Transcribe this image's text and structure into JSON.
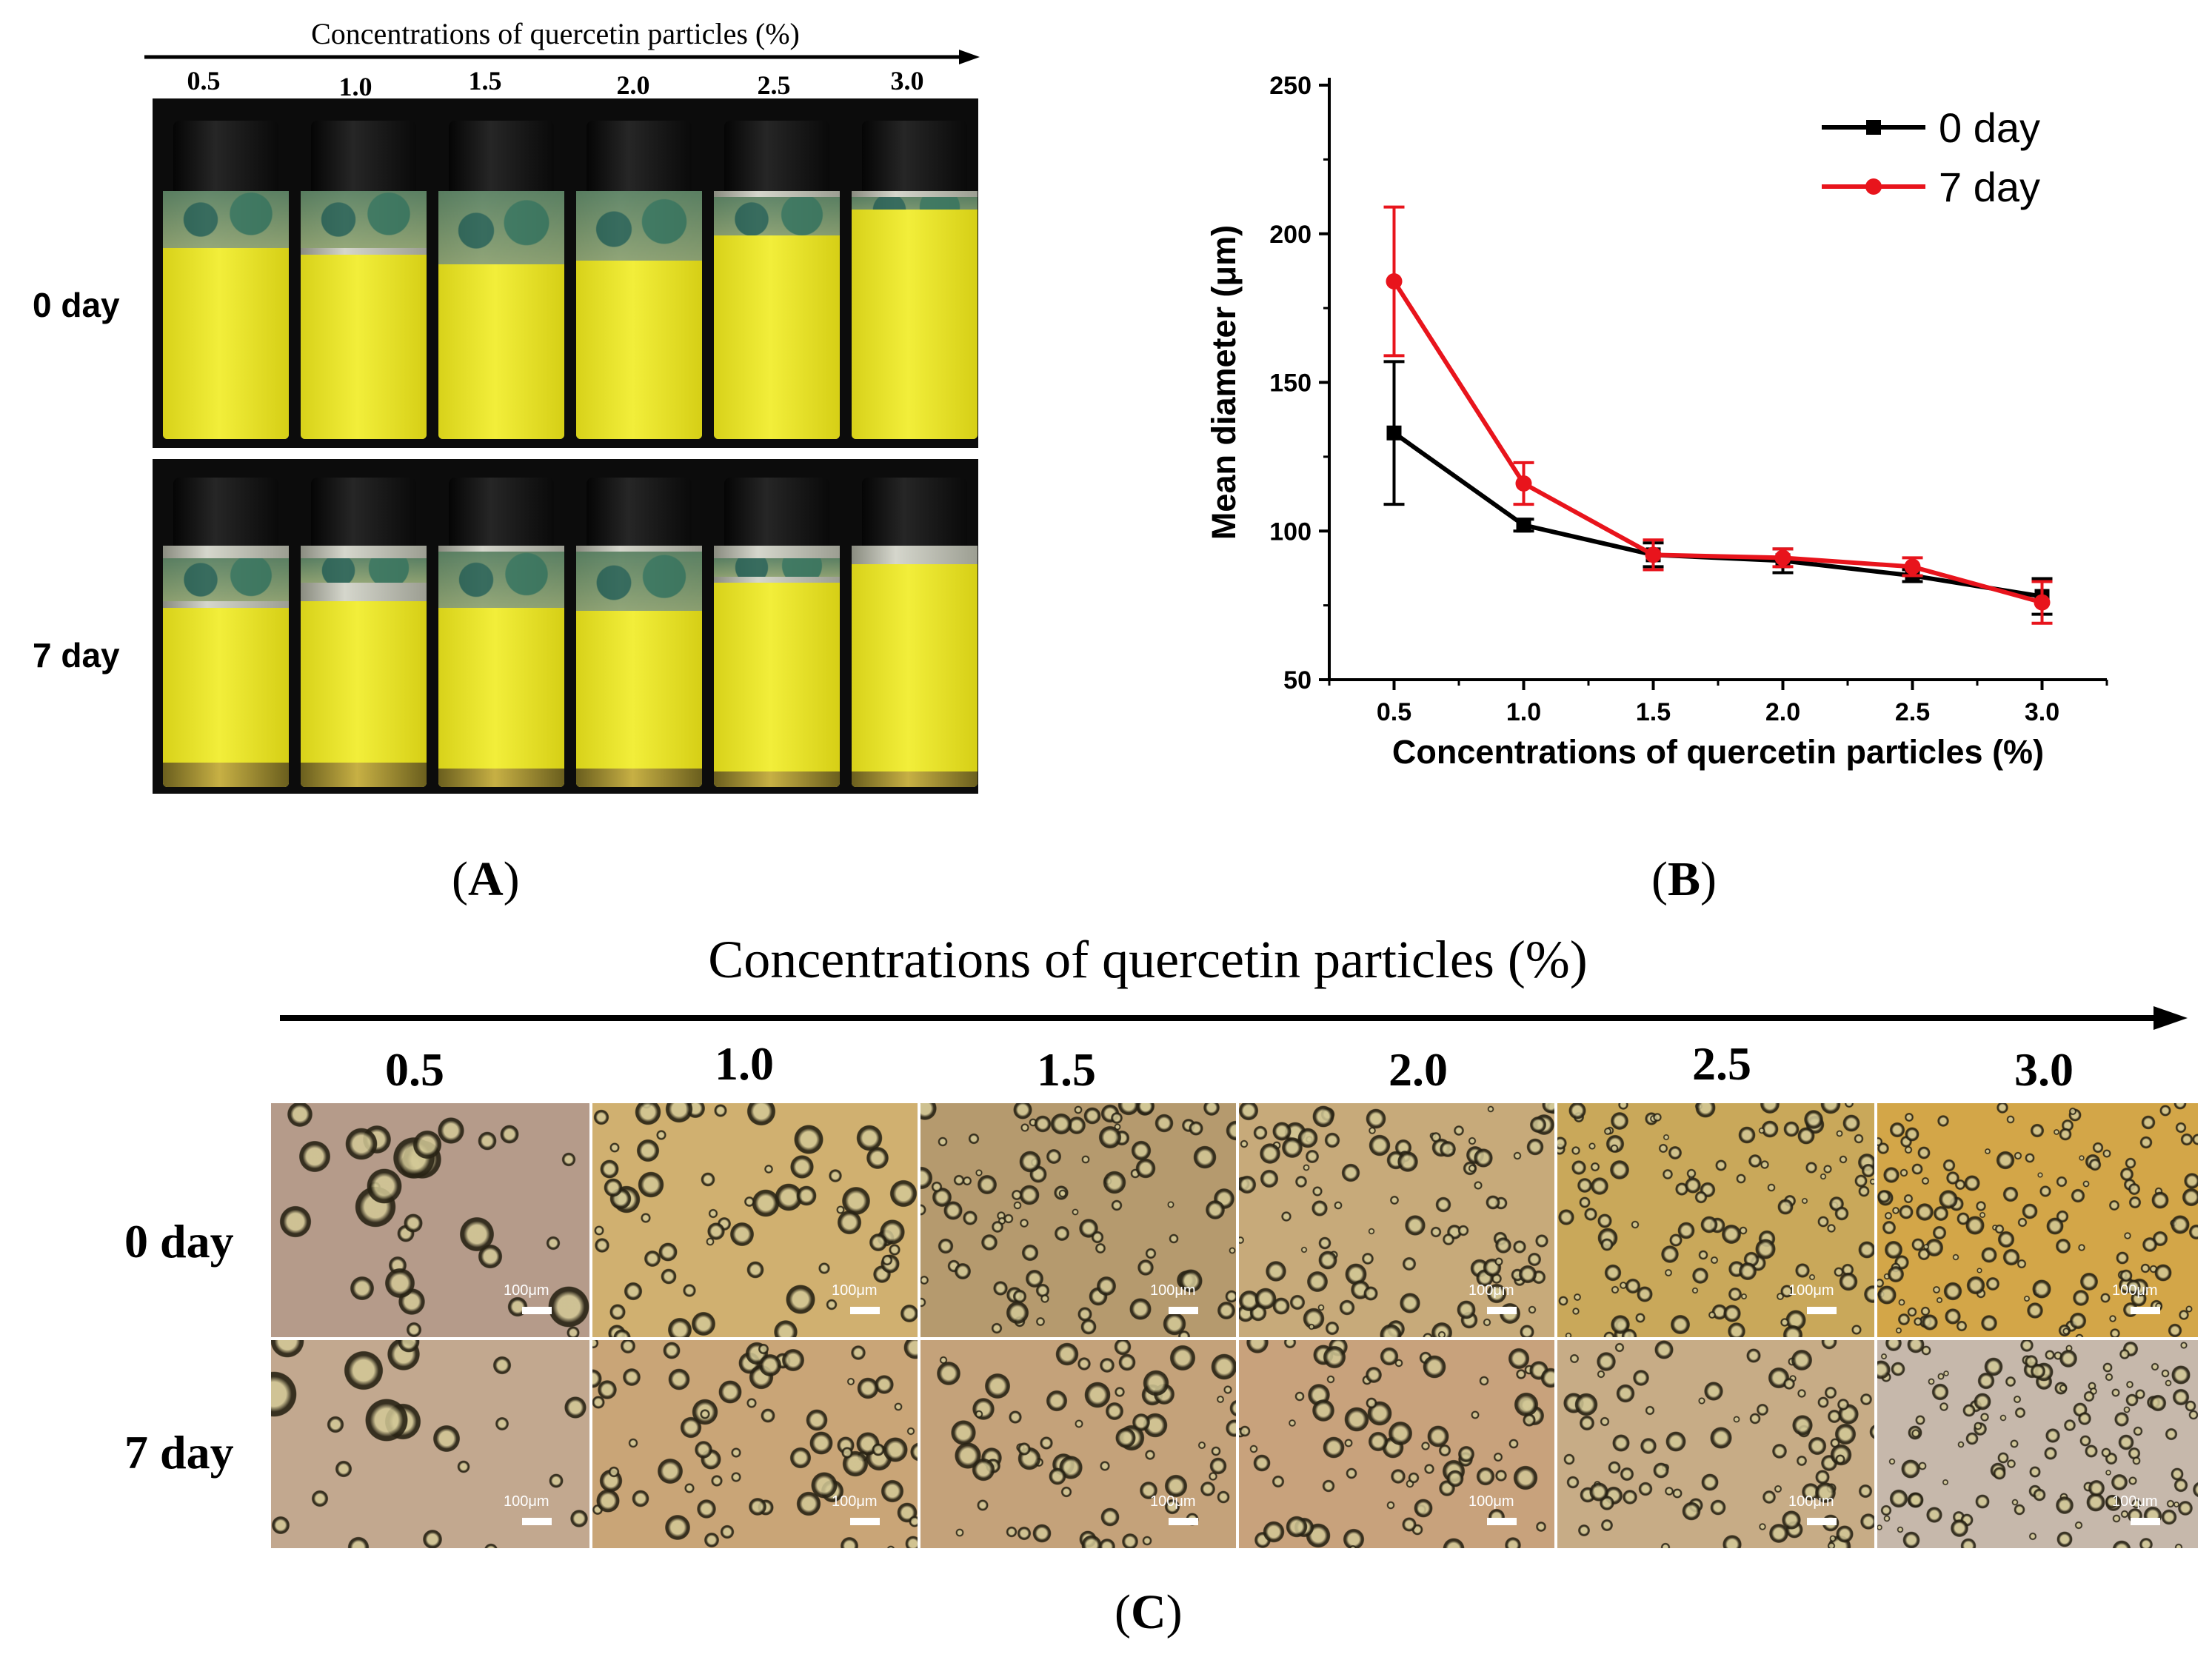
{
  "panelA": {
    "title": "Concentrations of quercetin particles (%)",
    "concentrations": [
      "0.5",
      "1.0",
      "1.5",
      "2.0",
      "2.5",
      "3.0"
    ],
    "rows": [
      "0 day",
      "7 day"
    ],
    "label_open": "(",
    "label_letter": "A",
    "label_close": ")"
  },
  "panelB": {
    "label_open": "(",
    "label_letter": "B",
    "label_close": ")"
  },
  "panelC": {
    "title": "Concentrations of quercetin particles (%)",
    "concentrations": [
      "0.5",
      "1.0",
      "1.5",
      "2.0",
      "2.5",
      "3.0"
    ],
    "rows": [
      "0 day",
      "7 day"
    ],
    "scale_bar": "100μm",
    "label_open": "(",
    "label_letter": "C",
    "label_close": ")"
  },
  "colors": {
    "series_0day": "#000000",
    "series_7day": "#e8141c"
  },
  "chart_data": {
    "type": "line",
    "title": "",
    "xlabel": "Concentrations of quercetin particles (%)",
    "ylabel": "Mean diameter (μm)",
    "x": [
      0.5,
      1.0,
      1.5,
      2.0,
      2.5,
      3.0
    ],
    "x_tick_labels": [
      "0.5",
      "1.0",
      "1.5",
      "2.0",
      "2.5",
      "3.0"
    ],
    "xlim": [
      0.25,
      3.25
    ],
    "ylim": [
      50,
      250
    ],
    "y_ticks": [
      50,
      100,
      150,
      200,
      250
    ],
    "legend_position": "top-right",
    "series": [
      {
        "name": "0 day",
        "marker": "square",
        "color": "#000000",
        "values": [
          133,
          102,
          92,
          90,
          85,
          78
        ],
        "errors": [
          24,
          2,
          4,
          4,
          2,
          6
        ]
      },
      {
        "name": "7 day",
        "marker": "circle",
        "color": "#e8141c",
        "values": [
          184,
          116,
          92,
          91,
          88,
          76
        ],
        "errors": [
          25,
          7,
          5,
          3,
          3,
          7
        ]
      }
    ]
  }
}
